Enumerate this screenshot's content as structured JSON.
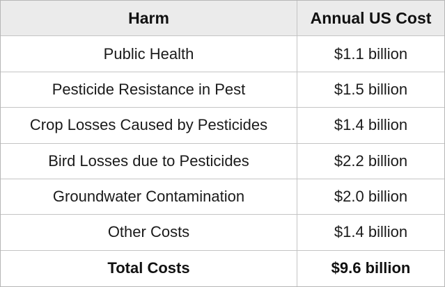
{
  "table": {
    "headers": [
      "Harm",
      "Annual US Cost"
    ],
    "rows": [
      {
        "harm": "Public Health",
        "cost": "$1.1 billion"
      },
      {
        "harm": "Pesticide Resistance in Pest",
        "cost": "$1.5 billion"
      },
      {
        "harm": "Crop Losses Caused by Pesticides",
        "cost": "$1.4 billion"
      },
      {
        "harm": "Bird Losses due to Pesticides",
        "cost": "$2.2 billion"
      },
      {
        "harm": "Groundwater Contamination",
        "cost": "$2.0 billion"
      },
      {
        "harm": "Other Costs",
        "cost": "$1.4 billion"
      }
    ],
    "total": {
      "harm": "Total Costs",
      "cost": "$9.6 billion"
    }
  },
  "colors": {
    "header_background": "#ebebeb",
    "border": "#c4c4c4"
  }
}
